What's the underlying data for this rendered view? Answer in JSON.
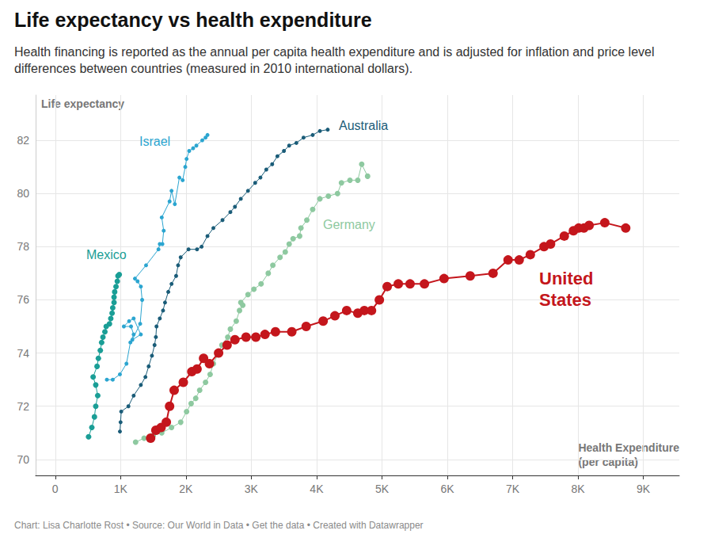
{
  "chart_data": {
    "type": "line",
    "title": "Life expectancy vs health expenditure",
    "subtitle": "Health financing is reported as the annual per capita health expenditure and is adjusted for inflation and price level differences between countries (measured in 2010 international dollars).",
    "x_label": "Health Expenditure (per capita)",
    "y_label": "Life expectancy",
    "source": "Chart: Lisa Charlotte Rost • Source: Our World in Data • Get the data • Created with Datawrapper",
    "xlim": [
      -300,
      9550
    ],
    "xticks": [
      0,
      {
        "value": 1000,
        "label": "1K"
      },
      {
        "value": 2000,
        "label": "2K"
      },
      {
        "value": 3000,
        "label": "3K"
      },
      {
        "value": 4000,
        "label": "4K"
      },
      {
        "value": 5000,
        "label": "5K"
      },
      {
        "value": 6000,
        "label": "6K"
      },
      {
        "value": 7000,
        "label": "7K"
      },
      {
        "value": 8000,
        "label": "8K"
      },
      {
        "value": 9000,
        "label": "9K"
      }
    ],
    "ylim": [
      69.4,
      83.7
    ],
    "yticks": [
      70,
      72,
      74,
      76,
      78,
      80,
      82
    ],
    "grid": true,
    "marker": "circle",
    "series": [
      {
        "name": "Mexico",
        "color": "#1a9e96",
        "x": [
          510,
          560,
          600,
          620,
          650,
          620,
          580,
          640,
          660,
          690,
          710,
          730,
          760,
          780,
          830,
          850,
          870,
          880,
          900,
          900,
          910,
          930,
          950,
          960,
          980
        ],
        "values": [
          70.85,
          71.2,
          71.6,
          72.0,
          72.4,
          72.8,
          73.1,
          73.5,
          73.8,
          74.1,
          74.4,
          74.6,
          74.8,
          75.0,
          75.1,
          75.3,
          75.5,
          75.7,
          75.9,
          76.1,
          76.3,
          76.5,
          76.7,
          76.9,
          76.95
        ]
      },
      {
        "name": "Israel",
        "color": "#2ba5d0",
        "x": [
          790,
          880,
          990,
          1090,
          1150,
          1200,
          1160,
          1050,
          1130,
          1200,
          1310,
          1180,
          1300,
          1330,
          1310,
          1260,
          1220,
          1390,
          1580,
          1600,
          1640,
          1660,
          1630,
          1750,
          1780,
          1830,
          1900,
          1950,
          1990,
          2010,
          2050,
          2110,
          2160,
          2250,
          2300,
          2330
        ],
        "values": [
          73.0,
          73.0,
          73.2,
          73.6,
          74.4,
          74.7,
          75.0,
          75.0,
          75.2,
          75.3,
          74.7,
          74.5,
          75.1,
          76.0,
          76.5,
          76.7,
          76.8,
          77.3,
          77.9,
          78.1,
          78.1,
          78.6,
          79.1,
          79.7,
          80.1,
          79.6,
          80.6,
          80.5,
          81.0,
          81.3,
          81.6,
          81.7,
          81.8,
          82.0,
          82.1,
          82.2
        ]
      },
      {
        "name": "Australia",
        "color": "#1a5c78",
        "x": [
          990,
          1000,
          1010,
          1120,
          1200,
          1310,
          1380,
          1430,
          1480,
          1520,
          1540,
          1550,
          1600,
          1650,
          1680,
          1730,
          1780,
          1850,
          1880,
          1920,
          2040,
          2170,
          2240,
          2330,
          2420,
          2560,
          2680,
          2750,
          2840,
          2950,
          3060,
          3140,
          3230,
          3320,
          3400,
          3500,
          3580,
          3690,
          3800,
          3940,
          4050,
          4170
        ],
        "values": [
          71.05,
          71.4,
          71.8,
          72.0,
          72.4,
          72.8,
          73.1,
          73.5,
          73.9,
          74.3,
          74.6,
          75.0,
          75.3,
          75.6,
          75.9,
          76.3,
          76.6,
          76.9,
          77.3,
          77.6,
          77.9,
          77.9,
          78.0,
          78.4,
          78.7,
          79.0,
          79.3,
          79.5,
          79.8,
          80.1,
          80.4,
          80.6,
          80.9,
          81.1,
          81.4,
          81.6,
          81.8,
          81.9,
          82.1,
          82.2,
          82.35,
          82.4
        ]
      },
      {
        "name": "Germany",
        "color": "#8ec9a0",
        "x": [
          1230,
          1360,
          1500,
          1630,
          1780,
          1920,
          2010,
          2080,
          2150,
          2210,
          2300,
          2370,
          2420,
          2500,
          2550,
          2640,
          2680,
          2770,
          2820,
          2870,
          2840,
          2950,
          3040,
          3150,
          3260,
          3330,
          3440,
          3520,
          3580,
          3640,
          3740,
          3760,
          3850,
          3940,
          4050,
          4180,
          4320,
          4380,
          4510,
          4630,
          4690,
          4780
        ],
        "values": [
          70.65,
          70.8,
          70.9,
          71.0,
          71.2,
          71.4,
          71.8,
          72.1,
          72.3,
          72.6,
          72.9,
          73.2,
          73.6,
          74.0,
          74.3,
          74.6,
          74.9,
          75.2,
          75.6,
          75.8,
          75.9,
          76.2,
          76.4,
          76.6,
          77.0,
          77.3,
          77.6,
          77.8,
          78.1,
          78.3,
          78.4,
          78.7,
          79.0,
          79.4,
          79.8,
          79.9,
          80.0,
          80.4,
          80.5,
          80.5,
          81.1,
          80.65
        ]
      },
      {
        "name": "United States",
        "color": "#c4161c",
        "x": [
          1460,
          1540,
          1620,
          1700,
          1750,
          1820,
          1960,
          2090,
          2170,
          2270,
          2360,
          2500,
          2630,
          2750,
          2920,
          3070,
          3210,
          3370,
          3620,
          3840,
          4100,
          4280,
          4460,
          4630,
          4730,
          4840,
          4960,
          5080,
          5250,
          5430,
          5650,
          5950,
          6350,
          6700,
          6930,
          7100,
          7270,
          7480,
          7580,
          7790,
          7930,
          8010,
          8090,
          8170,
          8410,
          8730
        ],
        "values": [
          70.8,
          71.1,
          71.2,
          71.4,
          72.0,
          72.6,
          72.9,
          73.3,
          73.4,
          73.8,
          73.6,
          74.0,
          74.3,
          74.5,
          74.6,
          74.6,
          74.7,
          74.8,
          74.8,
          75.0,
          75.2,
          75.4,
          75.6,
          75.5,
          75.6,
          75.6,
          76.0,
          76.5,
          76.6,
          76.6,
          76.6,
          76.8,
          76.9,
          77.0,
          77.5,
          77.5,
          77.7,
          78.0,
          78.1,
          78.4,
          78.6,
          78.7,
          78.7,
          78.8,
          78.9,
          78.7
        ]
      }
    ]
  }
}
